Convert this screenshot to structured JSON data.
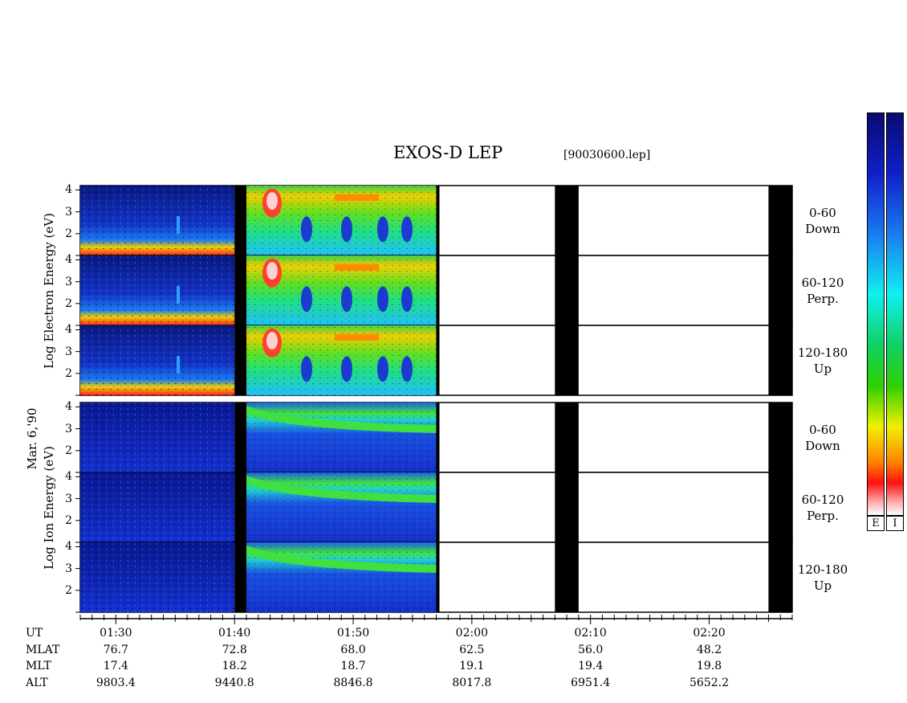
{
  "title": "EXOS-D LEP",
  "file": "[90030600.lep]",
  "labels": {
    "date": "Mar. 6,'90",
    "electron_axis": "Log  Electron  Energy  (eV)",
    "ion_axis": "Log  Ion  Energy  (eV)"
  },
  "colorbar": {
    "electron_tag": "E",
    "ion_tag": "I"
  },
  "pitch_bins": [
    {
      "range": "0-60",
      "dir": "Down"
    },
    {
      "range": "60-120",
      "dir": "Perp."
    },
    {
      "range": "120-180",
      "dir": "Up"
    }
  ],
  "ephemeris_labels": [
    "UT",
    "MLAT",
    "MLT",
    "ALT"
  ],
  "ephemeris": [
    {
      "ut": "01:30",
      "mlat": "76.7",
      "mlt": "17.4",
      "alt": "9803.4"
    },
    {
      "ut": "01:40",
      "mlat": "72.8",
      "mlt": "18.2",
      "alt": "9440.8"
    },
    {
      "ut": "01:50",
      "mlat": "68.0",
      "mlt": "18.7",
      "alt": "8846.8"
    },
    {
      "ut": "02:00",
      "mlat": "62.5",
      "mlt": "19.1",
      "alt": "8017.8"
    },
    {
      "ut": "02:10",
      "mlat": "56.0",
      "mlt": "19.4",
      "alt": "6951.4"
    },
    {
      "ut": "02:20",
      "mlat": "48.2",
      "mlt": "19.8",
      "alt": "5652.2"
    }
  ],
  "chart_data": {
    "type": "heatmap",
    "title": "EXOS-D LEP",
    "xlabel": "UT",
    "ylabel": "Log Energy (eV)",
    "x_ticks": [
      "01:30",
      "01:40",
      "01:50",
      "02:00",
      "02:10",
      "02:20"
    ],
    "y_ticks": [
      1,
      2,
      3,
      4
    ],
    "ylim": [
      1,
      4.2
    ],
    "panels": [
      {
        "species": "Electron",
        "pitch": "0-60 Down"
      },
      {
        "species": "Electron",
        "pitch": "60-120 Perp."
      },
      {
        "species": "Electron",
        "pitch": "120-180 Up"
      },
      {
        "species": "Ion",
        "pitch": "0-60 Down"
      },
      {
        "species": "Ion",
        "pitch": "60-120 Perp."
      },
      {
        "species": "Ion",
        "pitch": "120-180 Up"
      }
    ],
    "data_gaps_ut": [
      [
        "01:40",
        "01:41"
      ],
      [
        "02:07",
        "02:09"
      ],
      [
        "02:25",
        "02:27"
      ]
    ],
    "no_data_after_ut": "01:57",
    "colors": {
      "no_data": "#000000",
      "empty": "#ffffff"
    }
  }
}
